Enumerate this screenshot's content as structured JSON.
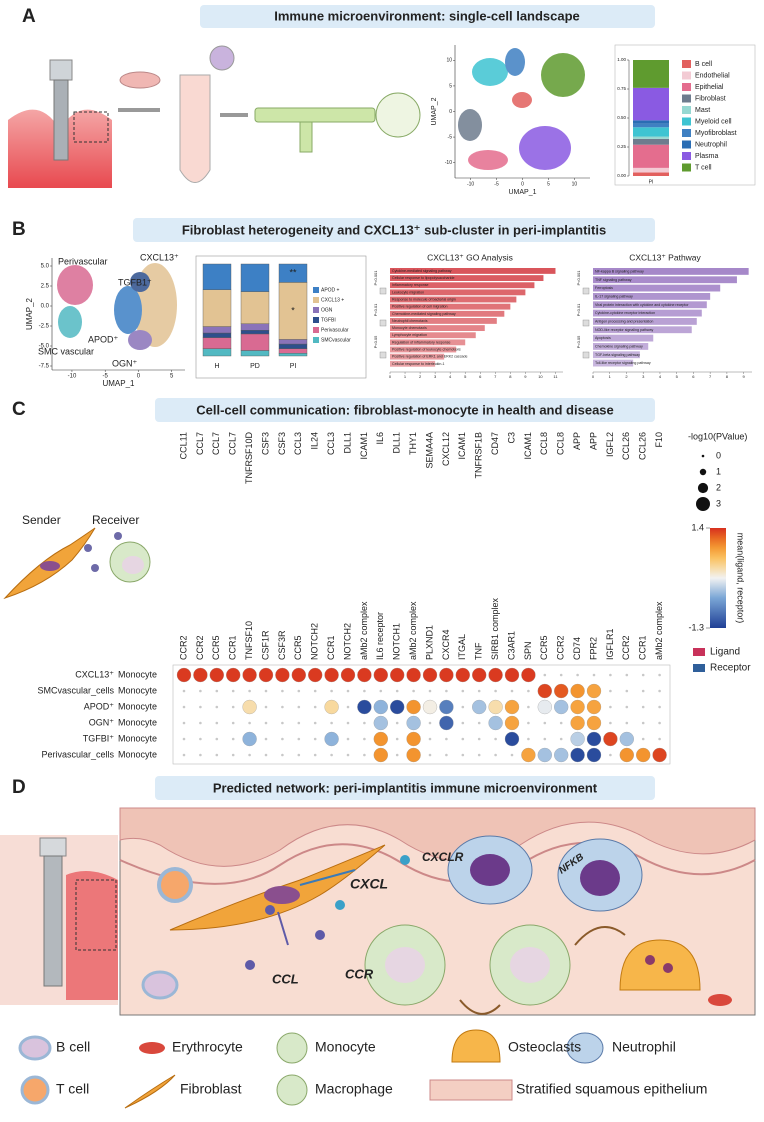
{
  "panelA": {
    "letter": "A",
    "title": "Immune microenvironment: single-cell landscape",
    "umap": {
      "type": "scatter",
      "xlabel": "UMAP_1",
      "ylabel": "UMAP_2",
      "xlim": [
        -13,
        13
      ],
      "ylim": [
        -13,
        13
      ],
      "xticks": [
        -10,
        -5,
        0,
        5,
        10
      ],
      "yticks": [
        10,
        5,
        0,
        -5,
        -10
      ]
    },
    "composition": {
      "type": "bar",
      "categories": [
        "PI"
      ],
      "ylim": [
        0,
        1
      ],
      "yticks": [
        {
          "value": 0,
          "label": "0.00"
        },
        {
          "value": 0.25,
          "label": "0.25"
        },
        {
          "value": 0.5,
          "label": "0.50"
        },
        {
          "value": 0.75,
          "label": "0.75"
        },
        {
          "value": 1,
          "label": "1.00"
        }
      ],
      "series": [
        {
          "name": "B cell",
          "color": "#e2605e",
          "values": [
            0.03
          ]
        },
        {
          "name": "Endothelial",
          "color": "#f3cbd4",
          "values": [
            0.04
          ]
        },
        {
          "name": "Epithelial",
          "color": "#e46d8e",
          "values": [
            0.2
          ]
        },
        {
          "name": "Fibroblast",
          "color": "#6e7c8e",
          "values": [
            0.05
          ]
        },
        {
          "name": "Mast",
          "color": "#96d8d2",
          "values": [
            0.02
          ]
        },
        {
          "name": "Myeloid cell",
          "color": "#3ec4d2",
          "values": [
            0.08
          ]
        },
        {
          "name": "Myofibroblast",
          "color": "#3f80c2",
          "values": [
            0.03
          ]
        },
        {
          "name": "Neutrophil",
          "color": "#2a6db4",
          "values": [
            0.03
          ]
        },
        {
          "name": "Plasma",
          "color": "#8a5ae2",
          "values": [
            0.28
          ]
        },
        {
          "name": "T cell",
          "color": "#5f9b2f",
          "values": [
            0.24
          ]
        }
      ]
    }
  },
  "panelB": {
    "letter": "B",
    "title": "Fibroblast heterogeneity and CXCL13⁺ sub-cluster in peri-implantitis",
    "umap": {
      "type": "scatter",
      "xlabel": "UMAP_1",
      "ylabel": "UMAP_2",
      "xlim": [
        -13,
        7
      ],
      "ylim": [
        -8,
        6
      ],
      "xticks": [
        -10,
        -5,
        0,
        5
      ],
      "yticks": [
        {
          "value": 5,
          "label": "5.0"
        },
        {
          "value": 2.5,
          "label": "2.5"
        },
        {
          "value": 0,
          "label": "0.0"
        },
        {
          "value": -2.5,
          "label": "-2.5"
        },
        {
          "value": -5,
          "label": "-5.0"
        },
        {
          "value": -7.5,
          "label": "-7.5"
        }
      ],
      "cluster_labels": [
        "Perivascular",
        "CXCL13⁺",
        "TGFB1⁺",
        "APOD⁺",
        "SMC vascular",
        "OGN⁺"
      ]
    },
    "composition": {
      "type": "bar",
      "categories": [
        "H",
        "PD",
        "PI"
      ],
      "ylim": [
        0,
        1
      ],
      "annotations": [
        "**",
        "*"
      ],
      "series": [
        {
          "name": "SMCvascular",
          "color": "#52b9c2",
          "values": [
            0.08,
            0.06,
            0.03
          ]
        },
        {
          "name": "Perivascular",
          "color": "#d96a92",
          "values": [
            0.12,
            0.18,
            0.05
          ]
        },
        {
          "name": "TGFBI",
          "color": "#2d4f8c",
          "values": [
            0.05,
            0.04,
            0.05
          ]
        },
        {
          "name": "OGN",
          "color": "#8a73b9",
          "values": [
            0.07,
            0.07,
            0.05
          ]
        },
        {
          "name": "CXCL13 +",
          "color": "#e2c393",
          "values": [
            0.4,
            0.35,
            0.62
          ]
        },
        {
          "name": "APOD +",
          "color": "#3d80c5",
          "values": [
            0.28,
            0.3,
            0.2
          ]
        }
      ]
    },
    "go": {
      "type": "bar",
      "title": "CXCL13⁺  GO Analysis",
      "color": "#d9555b",
      "xlim": [
        0,
        11.5
      ],
      "xticks": [
        0,
        1,
        2,
        3,
        4,
        5,
        6,
        7,
        8,
        9,
        10,
        11
      ],
      "pvalue_labels": [
        "P<0.001",
        "P<0.01",
        "P<0.05"
      ],
      "categories": [
        "Cytokine-mediated signaling pathway",
        "Cellular response to lipopolysaccharide",
        "Inflammatory response",
        "Leukocyte migration",
        "Response to molecule of bacterial origin",
        "Positive regulation of cell migration",
        "Chemokine-mediated signaling pathway",
        "Neutrophil chemotaxis",
        "Monocyte chemotaxis",
        "Lymphocyte migration",
        "Regulation of inflammatory response",
        "Positive regulation of leukocyte chemotaxis",
        "Positive regulation of ERK1 and ERK2 cascade",
        "Cellular response to interleukin-1"
      ],
      "values": [
        11,
        10.2,
        9.6,
        9,
        8.4,
        8,
        7.6,
        7.1,
        6.3,
        5.7,
        5,
        4.4,
        3.6,
        3
      ]
    },
    "pathway": {
      "type": "bar",
      "title": "CXCL13⁺  Pathway",
      "color": "#a688c9",
      "xlim": [
        0,
        9.5
      ],
      "xticks": [
        0,
        1,
        2,
        3,
        4,
        5,
        6,
        7,
        8,
        9
      ],
      "pvalue_labels": [
        "P<0.001",
        "P<0.01",
        "P<0.05"
      ],
      "categories": [
        "NF-kappa B signaling pathway",
        "TNF signaling pathway",
        "Ferroptosis",
        "IL-17 signaling pathway",
        "Viral protein interaction with cytokine and cytokine receptor",
        "Cytokine-cytokine receptor interaction",
        "Antigen processing and presentation",
        "NOD-like receptor signaling pathway",
        "Apoptosis",
        "Chemokine signaling pathway",
        "TGF-beta signaling pathway",
        "Toll-like receptor signaling pathway"
      ],
      "values": [
        9.3,
        8.6,
        7.6,
        7,
        6.8,
        6.5,
        6.2,
        5.9,
        3.6,
        3.3,
        2.8,
        2.4
      ]
    }
  },
  "panelC": {
    "letter": "C",
    "title": "Cell-cell communication: fibroblast-monocyte in health and disease",
    "sender": "Sender",
    "receiver": "Receiver",
    "ligands": [
      "CCL11",
      "CCL7",
      "CCL7",
      "CCL7",
      "TNFRSF10D",
      "CSF3",
      "CSF3",
      "CCL3",
      "IL24",
      "CCL3",
      "DLL1",
      "ICAM1",
      "IL6",
      "DLL1",
      "THY1",
      "SEMA4A",
      "CXCL12",
      "ICAM1",
      "TNFRSF1B",
      "CD47",
      "C3",
      "ICAM1",
      "CCL8",
      "CCL8",
      "APP",
      "APP",
      "IGFL2",
      "CCL26",
      "CCL26",
      "F10"
    ],
    "receptors": [
      "CCR2",
      "CCR2",
      "CCR5",
      "CCR1",
      "TNFSF10",
      "CSF1R",
      "CSF3R",
      "CCR5",
      "NOTCH2",
      "CCR1",
      "NOTCH2",
      "aMb2 complex",
      "IL6 receptor",
      "NOTCH1",
      "aMb2 complex",
      "PLXND1",
      "CXCR4",
      "ITGAL",
      "TNF",
      "SIRB1 complex",
      "C3AR1",
      "SPN",
      "CCR5",
      "CCR2",
      "CD74",
      "FPR2",
      "IGFLR1",
      "CCR2",
      "CCR1",
      "aMb2 complex"
    ],
    "senders": [
      "CXCL13⁺",
      "SMCvascular_cells",
      "APOD⁺",
      "OGN⁺",
      "TGFBI⁺",
      "Perivascular_cells"
    ],
    "receivers": [
      "Monocyte",
      "Monocyte",
      "Monocyte",
      "Monocyte",
      "Monocyte",
      "Monocyte"
    ],
    "means": [
      [
        1.35,
        1.35,
        1.35,
        1.35,
        1.35,
        1.35,
        1.35,
        1.35,
        1.35,
        1.35,
        1.35,
        1.35,
        1.35,
        1.35,
        1.35,
        1.35,
        1.35,
        1.35,
        1.35,
        1.35,
        1.35,
        1.35,
        null,
        null,
        null,
        null,
        null,
        null,
        null,
        null
      ],
      [
        null,
        null,
        null,
        null,
        null,
        null,
        null,
        null,
        null,
        null,
        null,
        null,
        null,
        null,
        null,
        null,
        null,
        null,
        null,
        null,
        null,
        null,
        1.3,
        1.2,
        0.9,
        0.8,
        null,
        null,
        null,
        null
      ],
      [
        null,
        null,
        null,
        null,
        0.3,
        null,
        null,
        null,
        null,
        0.35,
        null,
        -1.2,
        -0.4,
        -1.2,
        0.9,
        0.1,
        -0.8,
        null,
        -0.3,
        0.3,
        0.8,
        null,
        0,
        -0.3,
        0.8,
        0.8,
        null,
        null,
        null,
        null
      ],
      [
        null,
        null,
        null,
        null,
        null,
        null,
        null,
        null,
        null,
        null,
        null,
        null,
        -0.3,
        null,
        -0.3,
        null,
        -1,
        null,
        null,
        -0.3,
        0.8,
        null,
        null,
        null,
        0.8,
        0.8,
        null,
        null,
        null,
        null
      ],
      [
        null,
        null,
        null,
        null,
        -0.4,
        null,
        null,
        null,
        null,
        -0.4,
        null,
        null,
        0.9,
        null,
        0.9,
        null,
        null,
        null,
        null,
        null,
        -1.2,
        null,
        null,
        null,
        -0.2,
        -1.2,
        1.3,
        -0.3,
        null,
        null
      ],
      [
        null,
        null,
        null,
        null,
        null,
        null,
        null,
        null,
        null,
        null,
        null,
        null,
        0.9,
        null,
        0.9,
        null,
        null,
        null,
        null,
        null,
        null,
        0.8,
        -0.3,
        -0.3,
        -1.2,
        -1.2,
        null,
        0.9,
        0.9,
        1.3
      ]
    ],
    "sizes": [
      [
        3,
        3,
        3,
        3,
        3,
        3,
        3,
        3,
        3,
        3,
        3,
        3,
        3,
        3,
        3,
        3,
        3,
        3,
        3,
        3,
        3,
        3,
        0,
        0,
        0,
        0,
        0,
        0,
        0,
        0
      ],
      [
        0,
        0,
        0,
        0,
        0,
        0,
        0,
        0,
        0,
        0,
        0,
        0,
        0,
        0,
        0,
        0,
        0,
        0,
        0,
        0,
        0,
        0,
        3,
        3,
        3,
        3,
        0,
        0,
        0,
        0
      ],
      [
        0,
        0,
        0,
        0,
        3,
        0,
        0,
        0,
        0,
        3,
        0,
        3,
        3,
        3,
        3,
        3,
        3,
        0,
        3,
        3,
        3,
        0,
        3,
        3,
        3,
        3,
        0,
        0,
        0,
        0
      ],
      [
        0,
        0,
        0,
        0,
        0,
        0,
        0,
        0,
        0,
        0,
        0,
        0,
        3,
        0,
        3,
        0,
        3,
        0,
        0,
        3,
        3,
        0,
        0,
        0,
        3,
        3,
        0,
        0,
        0,
        0
      ],
      [
        0,
        0,
        0,
        0,
        3,
        0,
        0,
        0,
        0,
        3,
        0,
        0,
        3,
        0,
        3,
        0,
        0,
        0,
        0,
        0,
        3,
        0,
        0,
        0,
        3,
        3,
        3,
        3,
        0,
        0
      ],
      [
        0,
        0,
        0,
        0,
        0,
        0,
        0,
        0,
        0,
        0,
        0,
        0,
        3,
        0,
        3,
        0,
        0,
        0,
        0,
        0,
        0,
        3,
        3,
        3,
        3,
        3,
        0,
        3,
        3,
        3
      ]
    ],
    "size_legend": {
      "title": "-log10(PValue)",
      "values": [
        0,
        1,
        2,
        3
      ]
    },
    "colorbar": {
      "title": "mean(ligand, receptor)",
      "ticks": [
        1.4,
        -1.3
      ]
    },
    "role_legend": [
      {
        "name": "Ligand",
        "color": "#c8325a"
      },
      {
        "name": "Receptor",
        "color": "#2f5f9a"
      }
    ]
  },
  "panelD": {
    "letter": "D",
    "title": "Predicted network: peri-implantitis immune microenvironment",
    "diagram_labels": [
      "CXCL",
      "CXCLR",
      "NFKB",
      "CCL",
      "CCR"
    ],
    "legend": [
      "B cell",
      "Erythrocyte",
      "Monocyte",
      "Osteoclasts",
      "Neutrophil",
      "T cell",
      "Fibroblast",
      "Macrophage",
      "Stratified squamous epithelium"
    ]
  }
}
